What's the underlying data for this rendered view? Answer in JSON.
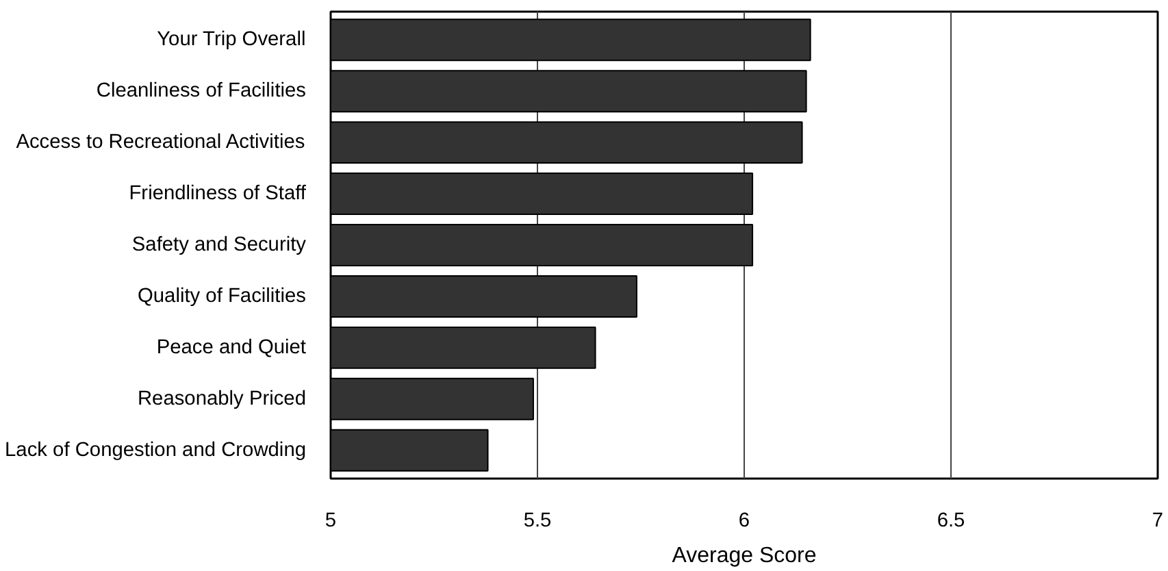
{
  "chart_data": {
    "type": "bar",
    "orientation": "horizontal",
    "xlabel": "Average Score",
    "categories": [
      "Your Trip Overall",
      "Cleanliness of Facilities",
      "Access to Recreational Activities",
      "Friendliness of Staff",
      "Safety and Security",
      "Quality of Facilities",
      "Peace and Quiet",
      "Reasonably Priced",
      "Lack of Congestion and Crowding"
    ],
    "values": [
      6.16,
      6.15,
      6.14,
      6.02,
      6.02,
      5.74,
      5.64,
      5.49,
      5.38
    ],
    "color": "#333333",
    "xlim": [
      5,
      7
    ],
    "xticks": [
      5,
      5.5,
      6,
      6.5,
      7
    ],
    "grid": "x"
  }
}
